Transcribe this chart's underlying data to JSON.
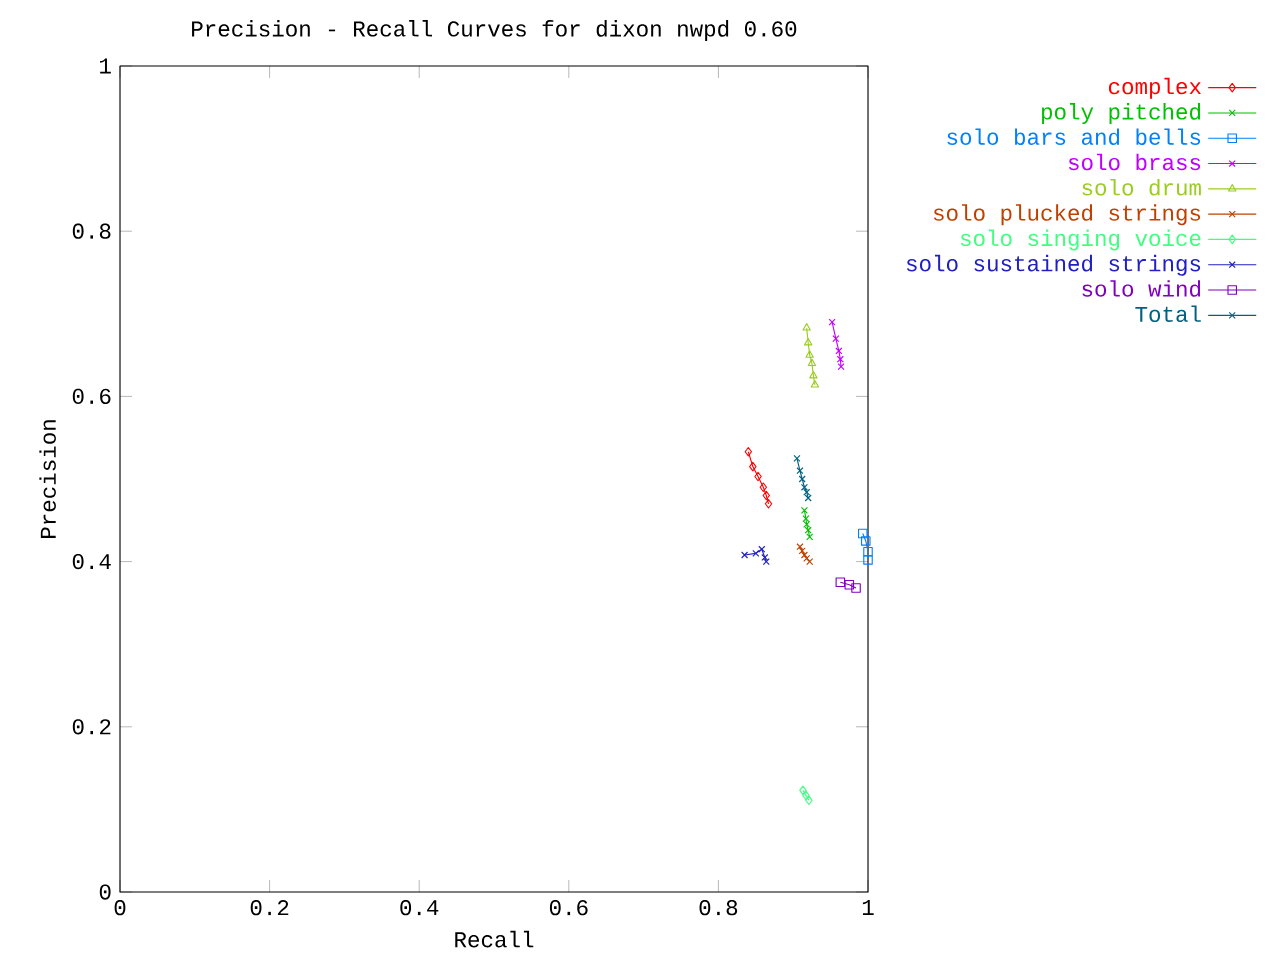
{
  "chart_data": {
    "type": "line",
    "title": "Precision - Recall Curves for dixon nwpd 0.60",
    "xlabel": "Recall",
    "ylabel": "Precision",
    "xlim": [
      0,
      1
    ],
    "ylim": [
      0,
      1
    ],
    "xticks": [
      0,
      0.2,
      0.4,
      0.6,
      0.8,
      1
    ],
    "yticks": [
      0,
      0.2,
      0.4,
      0.6,
      0.8,
      1
    ],
    "grid": false,
    "legend": "top right",
    "series": [
      {
        "name": "complex",
        "color": "#ff0000",
        "marker": "diamond",
        "x": [
          0.84,
          0.846,
          0.853,
          0.86,
          0.864,
          0.867
        ],
        "values": [
          0.533,
          0.515,
          0.503,
          0.49,
          0.48,
          0.47
        ]
      },
      {
        "name": "poly pitched",
        "color": "#00c000",
        "marker": "cross",
        "x": [
          0.915,
          0.917,
          0.918,
          0.92,
          0.922
        ],
        "values": [
          0.462,
          0.452,
          0.445,
          0.438,
          0.43
        ]
      },
      {
        "name": "solo bars and bells",
        "color": "#0080ff",
        "marker": "square",
        "x": [
          0.993,
          0.997,
          1.0,
          1.0
        ],
        "values": [
          0.434,
          0.425,
          0.412,
          0.402
        ]
      },
      {
        "name": "solo brass",
        "color": "#c000ff",
        "marker": "cross",
        "x": [
          0.952,
          0.957,
          0.961,
          0.963,
          0.964
        ],
        "values": [
          0.69,
          0.67,
          0.655,
          0.645,
          0.636
        ]
      },
      {
        "name": "solo drum",
        "color": "#9ccc20",
        "marker": "triangle",
        "x": [
          0.918,
          0.92,
          0.922,
          0.925,
          0.927,
          0.929
        ],
        "values": [
          0.683,
          0.665,
          0.65,
          0.64,
          0.625,
          0.614
        ]
      },
      {
        "name": "solo plucked strings",
        "color": "#c04000",
        "marker": "cross",
        "x": [
          0.909,
          0.912,
          0.915,
          0.918,
          0.922
        ],
        "values": [
          0.418,
          0.413,
          0.408,
          0.404,
          0.4
        ]
      },
      {
        "name": "solo singing voice",
        "color": "#40ff80",
        "marker": "diamond",
        "x": [
          0.913,
          0.917,
          0.921
        ],
        "values": [
          0.123,
          0.117,
          0.111
        ]
      },
      {
        "name": "solo sustained strings",
        "color": "#2020c0",
        "marker": "cross",
        "x": [
          0.835,
          0.85,
          0.858,
          0.862,
          0.864
        ],
        "values": [
          0.408,
          0.41,
          0.415,
          0.405,
          0.4
        ]
      },
      {
        "name": "solo wind",
        "color": "#8000c0",
        "marker": "square",
        "x": [
          0.963,
          0.975,
          0.984
        ],
        "values": [
          0.375,
          0.372,
          0.368
        ]
      },
      {
        "name": "Total",
        "color": "#006080",
        "marker": "cross",
        "x": [
          0.905,
          0.909,
          0.912,
          0.915,
          0.918,
          0.92
        ],
        "values": [
          0.525,
          0.51,
          0.5,
          0.49,
          0.484,
          0.477
        ]
      }
    ]
  }
}
